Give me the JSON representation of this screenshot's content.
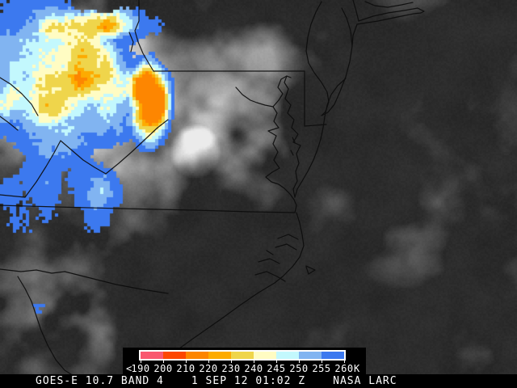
{
  "caption_bar": {
    "product": "GOES-E 10.7 BAND 4",
    "datetime": "1 SEP 12 01:02 Z",
    "credit": "NASA LARC"
  },
  "legend": {
    "prefix": "<",
    "tick_labels": [
      "190",
      "200",
      "210",
      "220",
      "230",
      "240",
      "245",
      "250",
      "255",
      "260"
    ],
    "unit": "K",
    "segment_colors": [
      "#f9586f",
      "#fd4701",
      "#fd8601",
      "#fdab01",
      "#efd54b",
      "#fffcc3",
      "#c3f8fd",
      "#81b4f1",
      "#3c79ef"
    ]
  },
  "satellite_image": {
    "background_color": "#262626",
    "boundary_color": "#0c0c0c",
    "ir_overlay_palette": [
      "#3c79ef",
      "#81b4f1",
      "#c3f8fd",
      "#fffcc3",
      "#efd54b",
      "#fdab01",
      "#fd8601"
    ]
  }
}
